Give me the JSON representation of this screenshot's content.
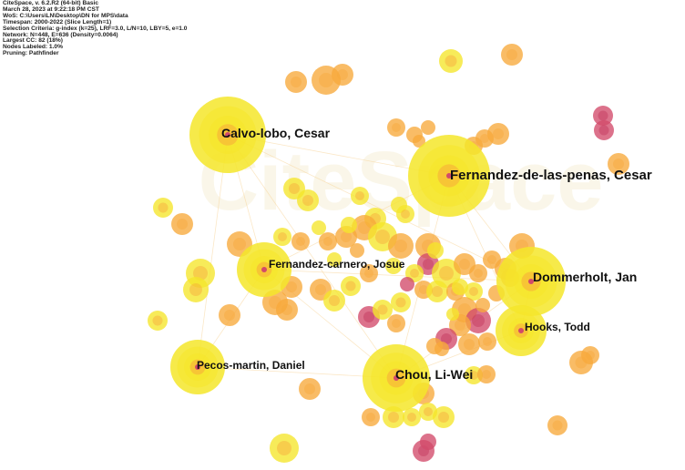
{
  "header_lines": [
    "CiteSpace, v. 6.2.R2 (64-bit) Basic",
    "March 28, 2023 at 9:22:18 PM CST",
    "WoS: C:\\Users\\LN\\Desktop\\DN for MPS\\data",
    "Timespan: 2000-2022 (Slice Length=1)",
    "Selection Criteria: g-index (k=25), LRF=3.0, L/N=10, LBY=5, e=1.0",
    "Network: N=448, E=636 (Density=0.0064)",
    "Largest CC: 82 (18%)",
    "Nodes Labeled: 1.0%",
    "Pruning: Pathfinder"
  ],
  "watermark": "CiteSpace",
  "colors": {
    "ring_yellow": "#f5e62a",
    "ring_orange": "#f7a93b",
    "ring_red": "#d24a6a",
    "link": "#f8d59a"
  },
  "labels": {
    "calvo": "Calvo-lobo, Cesar",
    "fernandez_penas": "Fernandez-de-las-penas, Cesar",
    "fernandez_carnero": "Fernandez-carnero, Josue",
    "dommerholt": "Dommerholt, Jan",
    "hooks": "Hooks, Todd",
    "pecos": "Pecos-martin, Daniel",
    "chou": "Chou, Li-Wei"
  }
}
